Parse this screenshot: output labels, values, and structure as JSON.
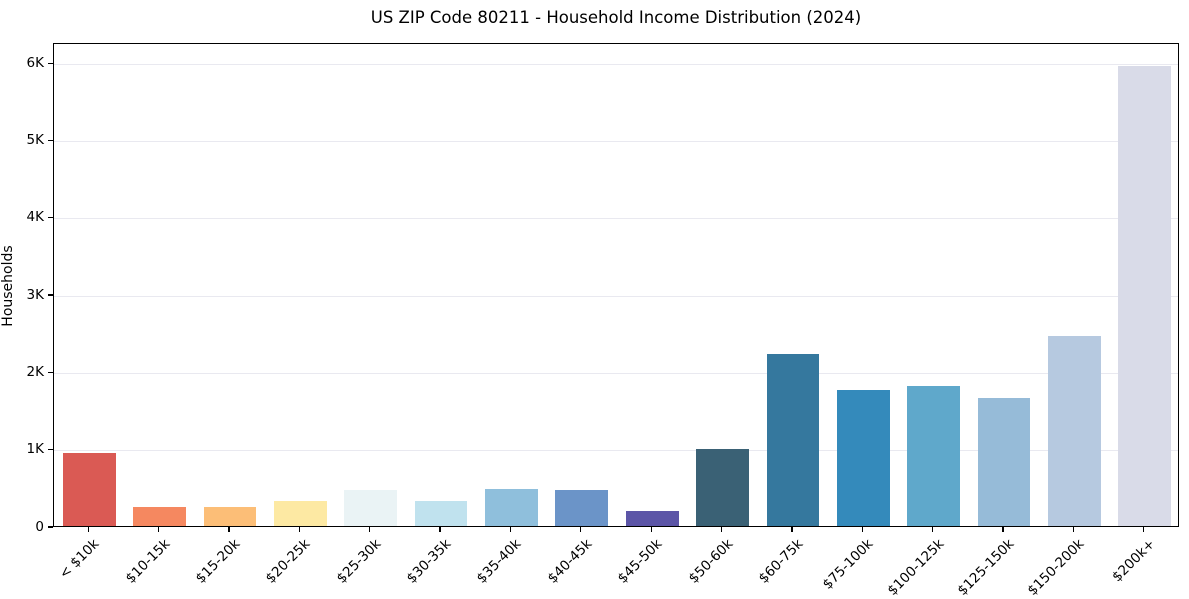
{
  "chart_data": {
    "type": "bar",
    "title": "US ZIP Code 80211 - Household Income Distribution (2024)",
    "xlabel": "",
    "ylabel": "Households",
    "categories": [
      "< $10k",
      "$10-15k",
      "$15-20k",
      "$20-25k",
      "$25-30k",
      "$30-35k",
      "$35-40k",
      "$40-45k",
      "$45-50k",
      "$50-60k",
      "$60-75k",
      "$75-100k",
      "$100-125k",
      "$125-150k",
      "$150-200k",
      "$200k+"
    ],
    "values": [
      950,
      250,
      240,
      320,
      470,
      330,
      475,
      460,
      195,
      1000,
      2230,
      1765,
      1815,
      1650,
      2460,
      5950
    ],
    "bar_colors": [
      "#da5a54",
      "#f58860",
      "#fcbe77",
      "#fde9a3",
      "#eaf3f5",
      "#c0e2ee",
      "#8fbfdc",
      "#6b94c8",
      "#5c55a7",
      "#3a6175",
      "#35789e",
      "#348abb",
      "#5fa8cb",
      "#96bbd8",
      "#b6c9e0",
      "#d9dbe8"
    ],
    "ytick_labels": [
      "0",
      "1K",
      "2K",
      "3K",
      "4K",
      "5K",
      "6K"
    ],
    "ytick_values": [
      0,
      1000,
      2000,
      3000,
      4000,
      5000,
      6000
    ],
    "ylim": [
      0,
      6260
    ],
    "xtick_rotation_deg": 45,
    "grid": "horizontal",
    "grid_color": "#e9e9f0",
    "spine_color": "#000000",
    "background_color": "#ffffff",
    "legend": "none",
    "bar_width_fraction": 0.75
  }
}
